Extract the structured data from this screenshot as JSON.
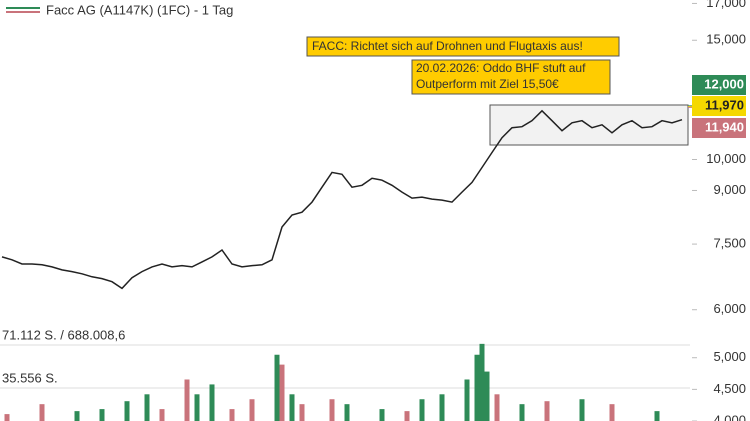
{
  "chart_data": [
    {
      "type": "line",
      "title": "Facc AG (A1147K) (1FC) - 1 Tag",
      "color": "#222222",
      "log_scale": true,
      "values": [
        7.18,
        7.11,
        7.01,
        7.01,
        6.99,
        6.94,
        6.87,
        6.83,
        6.78,
        6.71,
        6.67,
        6.6,
        6.45,
        6.69,
        6.83,
        6.94,
        7.01,
        6.94,
        6.97,
        6.94,
        7.06,
        7.18,
        7.35,
        7.01,
        6.94,
        6.97,
        6.99,
        7.11,
        7.95,
        8.28,
        8.36,
        8.65,
        9.1,
        9.57,
        9.51,
        9.1,
        9.16,
        9.38,
        9.32,
        9.16,
        8.95,
        8.77,
        8.8,
        8.74,
        8.71,
        8.65,
        8.95,
        9.25,
        9.73,
        10.24,
        10.77,
        11.14,
        11.18,
        11.41,
        11.8,
        11.41,
        11.03,
        11.33,
        11.41,
        11.14,
        11.25,
        10.95,
        11.25,
        11.41,
        11.14,
        11.18,
        11.41,
        11.33,
        11.45
      ],
      "xlim": [
        0,
        69
      ],
      "ylim": [
        5.6,
        17.2
      ],
      "yticks": [
        {
          "value": 6,
          "label": "6,000"
        },
        {
          "value": 7.5,
          "label": "7,500"
        },
        {
          "value": 9,
          "label": "9,000"
        },
        {
          "value": 10,
          "label": "10,000"
        },
        {
          "value": 15,
          "label": "15,000"
        },
        {
          "value": 17,
          "label": "17,000"
        }
      ],
      "price_labels": [
        {
          "value": 12,
          "label": "12,000",
          "color": "#2e8b57"
        },
        {
          "value": 11.97,
          "label": "11,970",
          "color": "#f5d800"
        },
        {
          "value": 11.94,
          "label": "11,940",
          "color": "#c9737b"
        }
      ],
      "annotations": [
        "FACC: Richtet sich auf Drohnen und Flugtaxis aus!",
        "20.02.2026: Oddo BHF stuft auf",
        "Outperform mit Ziel 15,50€"
      ]
    },
    {
      "type": "bar",
      "scale_labels": [
        "71.112 S. / 688.008,6",
        "35.556 S."
      ],
      "x": [
        0.5,
        4,
        7.5,
        10,
        12.5,
        14.5,
        16,
        18.5,
        19.5,
        21,
        23,
        25,
        27.5,
        28,
        29,
        30,
        33,
        34.5,
        38,
        40.5,
        42,
        44,
        46.5,
        47.5,
        48,
        48.5,
        49.5,
        52,
        54.5,
        58,
        61,
        65.5
      ],
      "values": [
        4109,
        4266,
        4156,
        4188,
        4313,
        4422,
        4188,
        4656,
        4422,
        4578,
        4188,
        4344,
        5047,
        4891,
        4422,
        4266,
        4344,
        4266,
        4188,
        4156,
        4344,
        4422,
        4656,
        5047,
        5219,
        4781,
        4422,
        4266,
        4313,
        4344,
        4266,
        4156
      ],
      "colors": [
        "#c9737b",
        "#c9737b",
        "#2e8b57",
        "#2e8b57",
        "#2e8b57",
        "#2e8b57",
        "#c9737b",
        "#c9737b",
        "#2e8b57",
        "#2e8b57",
        "#c9737b",
        "#c9737b",
        "#2e8b57",
        "#c9737b",
        "#2e8b57",
        "#c9737b",
        "#c9737b",
        "#2e8b57",
        "#2e8b57",
        "#c9737b",
        "#2e8b57",
        "#2e8b57",
        "#2e8b57",
        "#2e8b57",
        "#2e8b57",
        "#2e8b57",
        "#c9737b",
        "#2e8b57",
        "#c9737b",
        "#2e8b57",
        "#c9737b",
        "#2e8b57"
      ],
      "xlim": [
        0,
        69
      ],
      "ylim": [
        4000,
        5280
      ],
      "yticks": [
        {
          "value": 5000,
          "label": "5,000"
        },
        {
          "value": 4500,
          "label": "4,500"
        },
        {
          "value": 4000,
          "label": "4,000"
        }
      ]
    }
  ]
}
